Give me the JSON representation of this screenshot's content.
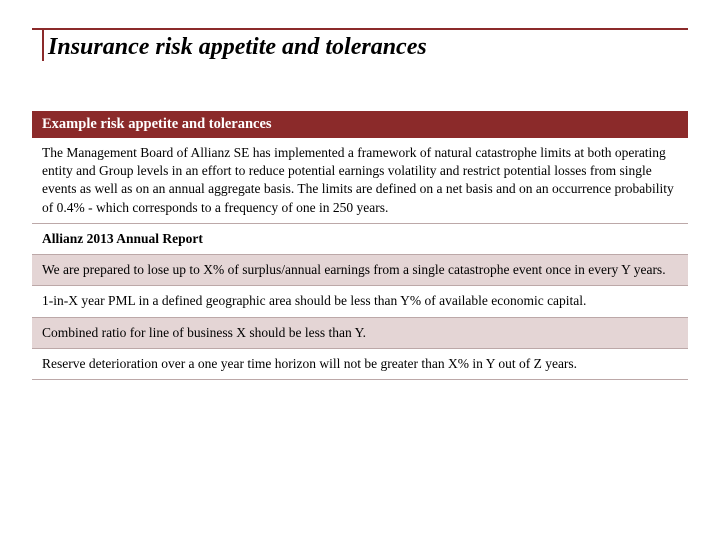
{
  "title": "Insurance risk appetite and tolerances",
  "table": {
    "header": "Example risk appetite and tolerances",
    "rows": [
      {
        "text": "The Management Board of Allianz SE has implemented a framework of natural catastrophe limits at both operating entity and Group levels in an effort to reduce potential earnings volatility and restrict potential losses from single events as well as on an annual aggregate basis. The limits are defined on a net basis and on an occurrence probability of 0.4% - which corresponds to a frequency of one in 250 years.",
        "bold": false,
        "alt": false
      },
      {
        "text": "Allianz 2013 Annual Report",
        "bold": true,
        "alt": false
      },
      {
        "text": "We are prepared to lose up to X% of surplus/annual earnings from a single catastrophe event once in every Y years.",
        "bold": false,
        "alt": true
      },
      {
        "text": "1-in-X year PML in a defined geographic area should be less than Y% of available economic capital.",
        "bold": false,
        "alt": false
      },
      {
        "text": "Combined ratio for line of business X should be less than Y.",
        "bold": false,
        "alt": true
      },
      {
        "text": "Reserve deterioration over a one year time horizon will not be greater than X% in Y out of Z years.",
        "bold": false,
        "alt": false
      }
    ]
  },
  "colors": {
    "accent": "#8b2a2a",
    "alt_row": "#e4d5d5",
    "border": "#bca8a8",
    "text": "#000000",
    "bg": "#ffffff"
  },
  "typography": {
    "title_fontsize": 24,
    "header_fontsize": 14.5,
    "body_fontsize": 13.5,
    "font_family": "Georgia, serif"
  }
}
